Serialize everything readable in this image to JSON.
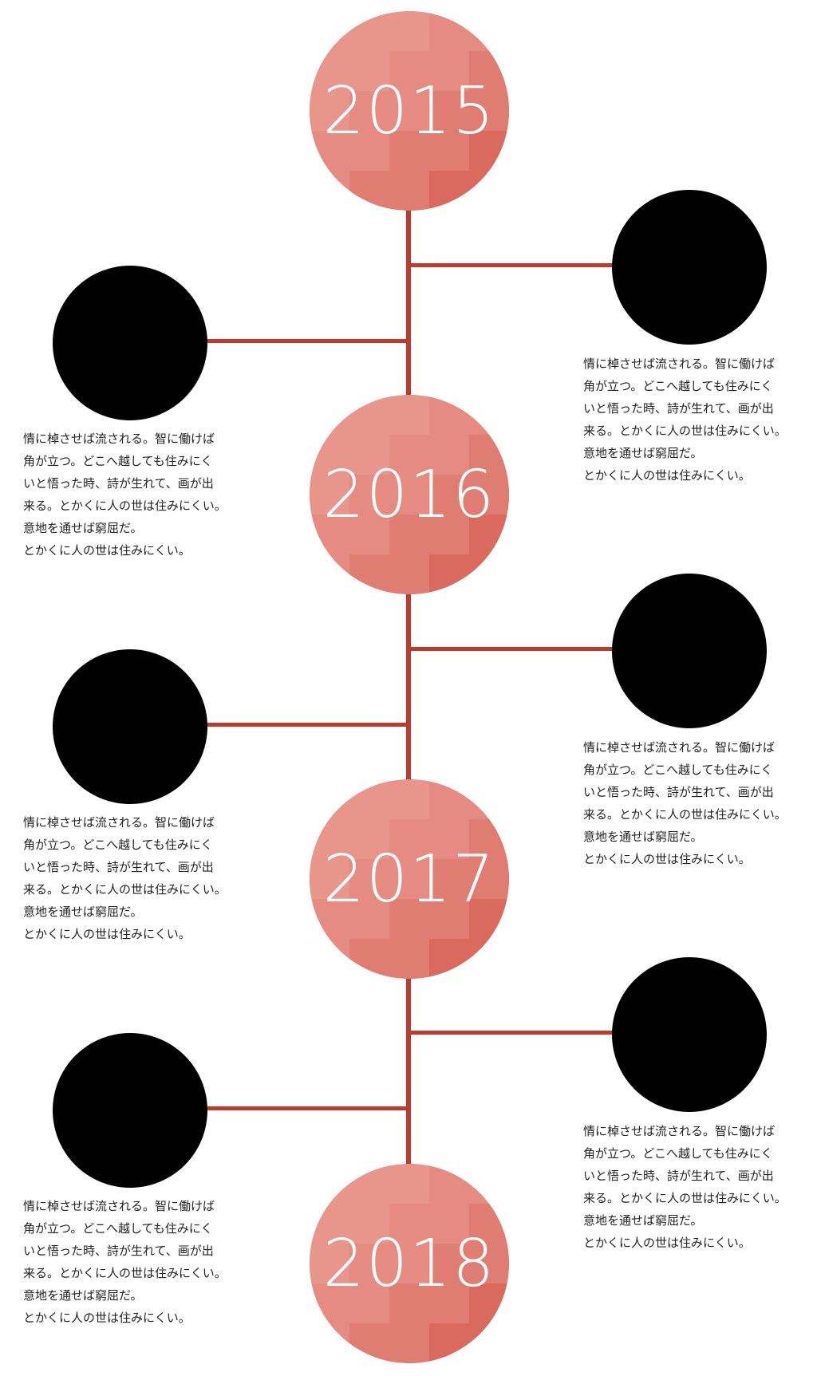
{
  "colors": {
    "accent": "#c0392b",
    "year_circle": "#e8938a",
    "node": "#000000"
  },
  "years": [
    {
      "label": "2015"
    },
    {
      "label": "2016"
    },
    {
      "label": "2017"
    },
    {
      "label": "2018"
    }
  ],
  "events": [
    {
      "side": "right",
      "text": "情に棹させば流される。智に働けば\n角が立つ。どこへ越しても住みにく\nいと悟った時、詩が生れて、画が出\n来る。とかくに人の世は住みにくい。\n意地を通せば窮屈だ。\nとかくに人の世は住みにくい。"
    },
    {
      "side": "left",
      "text": "情に棹させば流される。智に働けば\n角が立つ。どこへ越しても住みにく\nいと悟った時、詩が生れて、画が出\n来る。とかくに人の世は住みにくい。\n意地を通せば窮屈だ。\nとかくに人の世は住みにくい。"
    },
    {
      "side": "right",
      "text": "情に棹させば流される。智に働けば\n角が立つ。どこへ越しても住みにく\nいと悟った時、詩が生れて、画が出\n来る。とかくに人の世は住みにくい。\n意地を通せば窮屈だ。\nとかくに人の世は住みにくい。"
    },
    {
      "side": "left",
      "text": "情に棹させば流される。智に働けば\n角が立つ。どこへ越しても住みにく\nいと悟った時、詩が生れて、画が出\n来る。とかくに人の世は住みにくい。\n意地を通せば窮屈だ。\nとかくに人の世は住みにくい。"
    },
    {
      "side": "right",
      "text": "情に棹させば流される。智に働けば\n角が立つ。どこへ越しても住みにく\nいと悟った時、詩が生れて、画が出\n来る。とかくに人の世は住みにくい。\n意地を通せば窮屈だ。\nとかくに人の世は住みにくい。"
    },
    {
      "side": "left",
      "text": "情に棹させば流される。智に働けば\n角が立つ。どこへ越しても住みにく\nいと悟った時、詩が生れて、画が出\n来る。とかくに人の世は住みにくい。\n意地を通せば窮屈だ。\nとかくに人の世は住みにくい。"
    }
  ]
}
